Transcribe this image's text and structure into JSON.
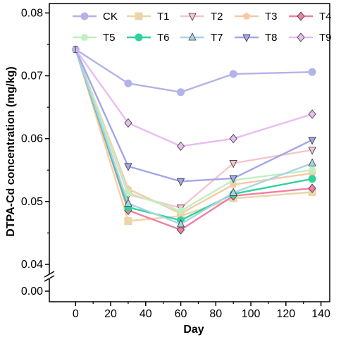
{
  "chart_data": {
    "type": "line",
    "xlabel": "Day",
    "ylabel": "DTPA-Cd concentration (mg/kg)",
    "x": [
      0,
      30,
      60,
      90,
      135
    ],
    "x_ticks": [
      "0",
      "20",
      "40",
      "60",
      "80",
      "100",
      "120",
      "140"
    ],
    "xlim": [
      -15,
      145
    ],
    "y_ticks_upper": [
      "0.04",
      "0.05",
      "0.06",
      "0.07",
      "0.08"
    ],
    "y_ticks_lower": [
      "0.00"
    ],
    "ylim": [
      0.04,
      0.0815
    ],
    "y_axis_break": "between 0.00 and 0.04",
    "legend_position": "top, inside plot, 5 columns",
    "series": [
      {
        "name": "CK",
        "values": [
          0.0742,
          0.0688,
          0.0674,
          0.0703,
          0.0706
        ],
        "color": "#b3b3e8",
        "marker": "circle"
      },
      {
        "name": "T1",
        "values": [
          0.0742,
          0.0469,
          0.0477,
          0.0505,
          0.0515
        ],
        "color": "#ecd5a8",
        "marker": "square"
      },
      {
        "name": "T2",
        "values": [
          0.0742,
          0.0511,
          0.049,
          0.0561,
          0.0582
        ],
        "color": "#f5c6cb",
        "marker": "triangle-down"
      },
      {
        "name": "T3",
        "values": [
          0.0742,
          0.052,
          0.0481,
          0.0527,
          0.0545
        ],
        "color": "#f7c9a5",
        "marker": "pentagon"
      },
      {
        "name": "T4",
        "values": [
          0.0742,
          0.0486,
          0.0455,
          0.0509,
          0.0521
        ],
        "color": "#ee7fa6",
        "marker": "diamond"
      },
      {
        "name": "T5",
        "values": [
          0.0742,
          0.0514,
          0.0485,
          0.0534,
          0.055
        ],
        "color": "#bff0bf",
        "marker": "hexagon"
      },
      {
        "name": "T6",
        "values": [
          0.0742,
          0.0491,
          0.047,
          0.0512,
          0.0536
        ],
        "color": "#2ed39c",
        "marker": "circle-half"
      },
      {
        "name": "T7",
        "values": [
          0.0742,
          0.0497,
          0.0464,
          0.0514,
          0.0561
        ],
        "color": "#a9d4e8",
        "marker": "triangle-up"
      },
      {
        "name": "T8",
        "values": [
          0.0742,
          0.0556,
          0.0532,
          0.0537,
          0.0598
        ],
        "color": "#a4a6ea",
        "marker": "triangle-down"
      },
      {
        "name": "T9",
        "values": [
          0.0742,
          0.0625,
          0.0588,
          0.06,
          0.0639
        ],
        "color": "#e8bdf0",
        "marker": "diamond"
      }
    ],
    "error_bar_at_day0": 0.0005
  }
}
